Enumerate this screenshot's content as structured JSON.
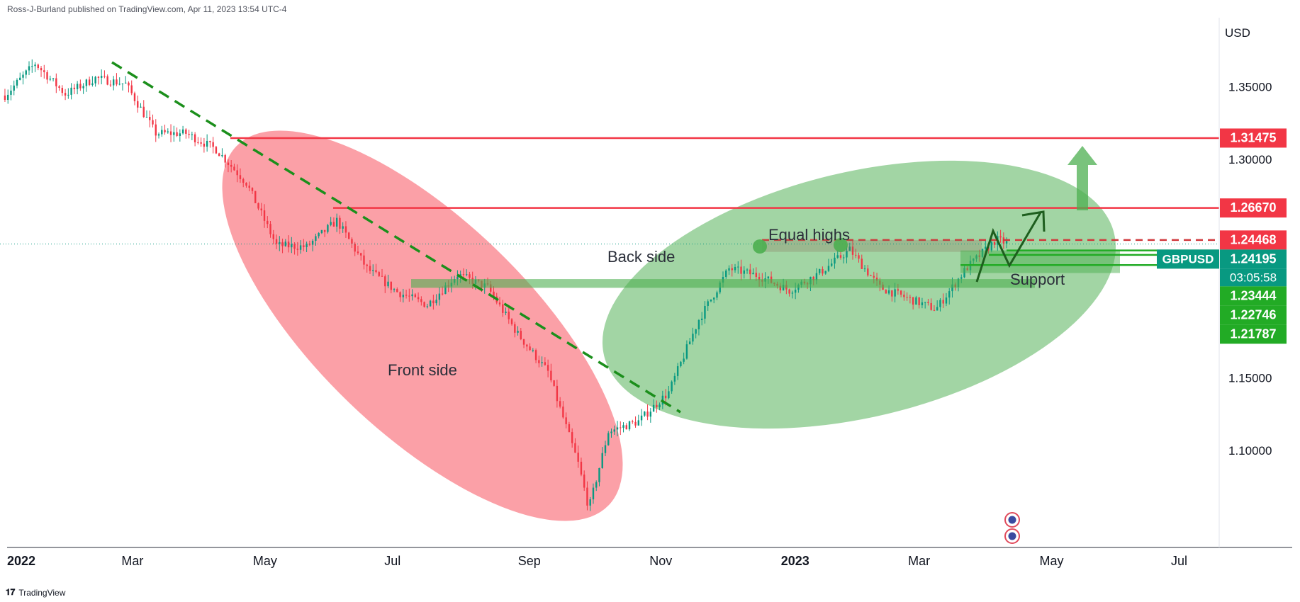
{
  "header": {
    "publisher": "Ross-J-Burland published on TradingView.com, Apr 11, 2023 13:54 UTC-4"
  },
  "footer": {
    "brand": "TradingView"
  },
  "chart_data": {
    "type": "line",
    "symbol": "GBPUSD",
    "currency": "USD",
    "ylim": [
      1.0333,
      1.3975
    ],
    "y_ticks": [
      "1.35000",
      "1.30000",
      "1.15000",
      "1.10000"
    ],
    "x_ticks": [
      {
        "label": "2022",
        "date": "2022-01-01",
        "bold": true
      },
      {
        "label": "Mar",
        "date": "2022-03-01"
      },
      {
        "label": "May",
        "date": "2022-05-01"
      },
      {
        "label": "Jul",
        "date": "2022-07-01"
      },
      {
        "label": "Sep",
        "date": "2022-09-01"
      },
      {
        "label": "Nov",
        "date": "2022-11-01"
      },
      {
        "label": "2023",
        "date": "2023-01-01",
        "bold": true
      },
      {
        "label": "Mar",
        "date": "2023-03-01"
      },
      {
        "label": "May",
        "date": "2023-05-01"
      },
      {
        "label": "Jul",
        "date": "2023-07-01"
      }
    ],
    "series": [
      {
        "x": [
          "2021-12-31",
          "2022-01-14",
          "2022-01-28",
          "2022-02-11",
          "2022-02-25",
          "2022-03-11",
          "2022-03-25",
          "2022-04-08",
          "2022-04-22",
          "2022-05-06",
          "2022-05-20",
          "2022-06-03",
          "2022-06-17",
          "2022-07-01",
          "2022-07-15",
          "2022-07-29",
          "2022-08-12",
          "2022-08-26",
          "2022-09-09",
          "2022-09-23",
          "2022-09-28",
          "2022-10-07",
          "2022-10-21",
          "2022-11-04",
          "2022-11-18",
          "2022-12-02",
          "2022-12-16",
          "2022-12-30",
          "2023-01-13",
          "2023-01-27",
          "2023-02-10",
          "2023-02-24",
          "2023-03-08",
          "2023-03-22",
          "2023-04-05",
          "2023-04-11"
        ],
        "close": [
          1.344,
          1.366,
          1.345,
          1.356,
          1.352,
          1.318,
          1.318,
          1.307,
          1.284,
          1.241,
          1.24,
          1.258,
          1.225,
          1.209,
          1.2,
          1.221,
          1.212,
          1.18,
          1.154,
          1.091,
          1.06,
          1.113,
          1.12,
          1.14,
          1.19,
          1.225,
          1.22,
          1.21,
          1.222,
          1.238,
          1.212,
          1.204,
          1.197,
          1.225,
          1.245,
          1.242
        ]
      }
    ],
    "price_labels": [
      {
        "value": "1.31475",
        "color": "#f23645"
      },
      {
        "value": "1.26670",
        "color": "#f23645"
      },
      {
        "value": "1.24468",
        "color": "#f23645"
      },
      {
        "value": "1.24195",
        "color": "#089981",
        "tag": "GBPUSD",
        "countdown": "03:05:58"
      },
      {
        "value": "1.23444",
        "color": "#22ab25"
      },
      {
        "value": "1.22746",
        "color": "#22ab25"
      },
      {
        "value": "1.21787",
        "color": "#22ab25"
      }
    ],
    "annotations": [
      "Front side",
      "Back side",
      "Equal highs",
      "Support"
    ],
    "colors": {
      "up": "#089981",
      "down": "#f23645",
      "front_ellipse": "#f7525f",
      "back_ellipse": "#4caf50",
      "resistance": "#f23645",
      "support": "#22ab25",
      "trendline": "#1b8f1b",
      "label_red": "#f23645",
      "label_green": "#22ab25",
      "label_teal": "#089981"
    },
    "grid": false,
    "legend": "none"
  }
}
